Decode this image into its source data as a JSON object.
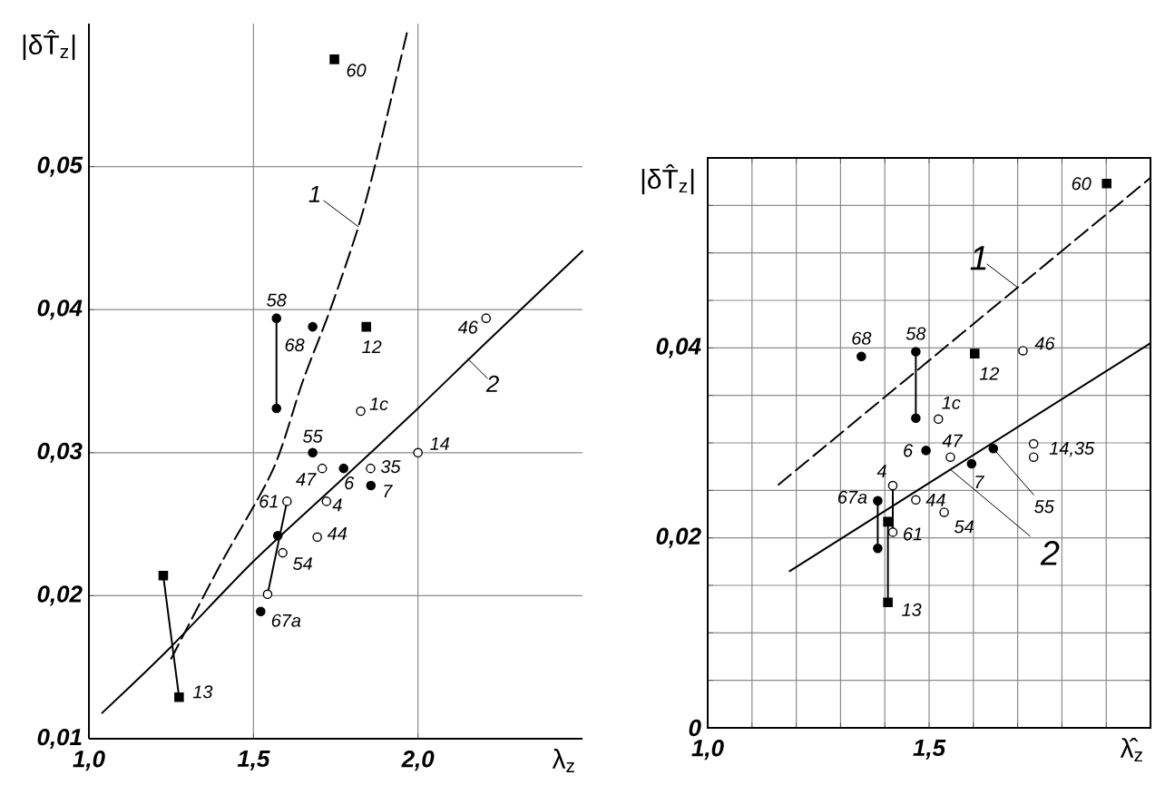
{
  "chart_data": [
    {
      "type": "scatter",
      "xlabel": "λ$_{z}$",
      "ylabel": "|δT̂$_{z}$|",
      "xlim": [
        1.0,
        2.5
      ],
      "ylim": [
        0.01,
        0.06
      ],
      "grid": true,
      "xticks": [
        {
          "value": 1.0,
          "label": "1,0"
        },
        {
          "value": 1.5,
          "label": "1,5"
        },
        {
          "value": 2.0,
          "label": "2,0"
        }
      ],
      "yticks": [
        {
          "value": 0.01,
          "label": "0,01"
        },
        {
          "value": 0.02,
          "label": "0,02"
        },
        {
          "value": 0.03,
          "label": "0,03"
        },
        {
          "value": 0.04,
          "label": "0,04"
        },
        {
          "value": 0.05,
          "label": "0,05"
        }
      ],
      "series": [
        {
          "marker": "square",
          "color": "#000000",
          "x": [
            1.746,
            1.843,
            1.274,
            1.226
          ],
          "values": [
            0.0575,
            0.0388,
            0.0129,
            0.0214
          ]
        },
        {
          "marker": "circle",
          "color": "#000000",
          "x": [
            1.57,
            1.57,
            1.68,
            1.68,
            1.774,
            1.857,
            1.574,
            1.522
          ],
          "values": [
            0.0394,
            0.0331,
            0.0388,
            0.03,
            0.0289,
            0.0277,
            0.0242,
            0.0189
          ]
        },
        {
          "marker": "circle",
          "color": "#ffffff",
          "x": [
            1.826,
            1.856,
            2.0,
            2.207,
            1.709,
            1.722,
            1.694,
            1.602,
            1.589,
            1.543
          ],
          "values": [
            0.0329,
            0.0289,
            0.03,
            0.0394,
            0.0289,
            0.0266,
            0.0241,
            0.0266,
            0.023,
            0.0201
          ]
        },
        {
          "type": "line",
          "marker": "none",
          "line_style": "dashed",
          "color": "#000000",
          "x": [
            1.25,
            1.4,
            1.559,
            1.65,
            1.735,
            1.819,
            1.874,
            1.97
          ],
          "values": [
            0.0156,
            0.0222,
            0.0288,
            0.035,
            0.0401,
            0.0458,
            0.0505,
            0.0597
          ]
        },
        {
          "type": "line",
          "marker": "none",
          "line_style": "solid",
          "color": "#000000",
          "x": [
            1.04,
            1.244,
            1.5,
            1.763,
            2.0,
            2.207,
            2.5
          ],
          "values": [
            0.0118,
            0.0163,
            0.0224,
            0.028,
            0.0331,
            0.0377,
            0.0441
          ]
        },
        {
          "type": "line",
          "marker": "none",
          "line_style": "solid",
          "color": "#000000",
          "x": [
            1.57,
            1.57
          ],
          "values": [
            0.0394,
            0.0331
          ]
        },
        {
          "type": "line",
          "marker": "none",
          "line_style": "solid",
          "color": "#000000",
          "x": [
            1.226,
            1.274
          ],
          "values": [
            0.0214,
            0.0129
          ]
        },
        {
          "type": "line",
          "marker": "none",
          "line_style": "solid",
          "color": "#000000",
          "x": [
            1.602,
            1.543
          ],
          "values": [
            0.0266,
            0.0201
          ]
        }
      ],
      "annotations": [
        {
          "text": "60",
          "x": 1.746,
          "y": 0.0575
        },
        {
          "text": "12",
          "x": 1.843,
          "y": 0.0388
        },
        {
          "text": "13",
          "x": 1.274,
          "y": 0.0129
        },
        {
          "text": "58",
          "x": 1.57,
          "y": 0.0394
        },
        {
          "text": "68",
          "x": 1.68,
          "y": 0.0388
        },
        {
          "text": "55",
          "x": 1.68,
          "y": 0.03
        },
        {
          "text": "6",
          "x": 1.774,
          "y": 0.0289
        },
        {
          "text": "7",
          "x": 1.857,
          "y": 0.0277
        },
        {
          "text": "1c",
          "x": 1.826,
          "y": 0.0329
        },
        {
          "text": "35",
          "x": 1.856,
          "y": 0.0289
        },
        {
          "text": "14",
          "x": 2.0,
          "y": 0.03
        },
        {
          "text": "46",
          "x": 2.207,
          "y": 0.0394
        },
        {
          "text": "47",
          "x": 1.709,
          "y": 0.0289
        },
        {
          "text": "4",
          "x": 1.722,
          "y": 0.0266
        },
        {
          "text": "44",
          "x": 1.694,
          "y": 0.0241
        },
        {
          "text": "61",
          "x": 1.602,
          "y": 0.0266
        },
        {
          "text": "54",
          "x": 1.589,
          "y": 0.023
        },
        {
          "text": "67a",
          "x": 1.522,
          "y": 0.0189
        },
        {
          "text": "1",
          "x": 1.819,
          "y": 0.0458
        },
        {
          "text": "2",
          "x": 2.15,
          "y": 0.0366
        }
      ]
    },
    {
      "type": "scatter",
      "xlabel": "λ̂$_{z}$",
      "ylabel": "|δT̂$_{z}$|",
      "xlim": [
        1.0,
        2.0
      ],
      "ylim": [
        0,
        0.06
      ],
      "grid": true,
      "xticks": [
        {
          "value": 1.0,
          "label": "1,0"
        },
        {
          "value": 1.1,
          "label": null
        },
        {
          "value": 1.2,
          "label": null
        },
        {
          "value": 1.3,
          "label": null
        },
        {
          "value": 1.4,
          "label": null
        },
        {
          "value": 1.5,
          "label": "1,5"
        },
        {
          "value": 1.6,
          "label": null
        },
        {
          "value": 1.7,
          "label": null
        },
        {
          "value": 1.8,
          "label": null
        },
        {
          "value": 1.9,
          "label": null
        },
        {
          "value": 2.0,
          "label": null
        }
      ],
      "yticks": [
        0,
        {
          "value": 0.005,
          "label": null
        },
        {
          "value": 0.01,
          "label": null
        },
        {
          "value": 0.015,
          "label": null
        },
        {
          "value": 0.02,
          "label": "0,02"
        },
        {
          "value": 0.025,
          "label": null
        },
        {
          "value": 0.03,
          "label": null
        },
        {
          "value": 0.035,
          "label": null
        },
        {
          "value": 0.04,
          "label": "0,04"
        },
        {
          "value": 0.045,
          "label": null
        },
        {
          "value": 0.05,
          "label": null
        },
        {
          "value": 0.055,
          "label": null
        },
        {
          "value": 0.06,
          "label": null
        }
      ],
      "series": [
        {
          "marker": "square",
          "color": "#000000",
          "x": [
            1.901,
            1.603,
            1.407,
            1.407
          ],
          "values": [
            0.0573,
            0.0394,
            0.0132,
            0.0217
          ]
        },
        {
          "marker": "circle",
          "color": "#000000",
          "x": [
            1.347,
            1.47,
            1.47,
            1.493,
            1.596,
            1.645,
            1.384,
            1.384
          ],
          "values": [
            0.0391,
            0.0396,
            0.0326,
            0.0292,
            0.0278,
            0.0294,
            0.0239,
            0.0189
          ]
        },
        {
          "marker": "circle",
          "color": "#ffffff",
          "x": [
            1.521,
            1.548,
            1.712,
            1.736,
            1.736,
            1.418,
            1.47,
            1.534,
            1.418
          ],
          "values": [
            0.0325,
            0.0285,
            0.0397,
            0.0299,
            0.0285,
            0.0255,
            0.024,
            0.0227,
            0.0206
          ]
        },
        {
          "type": "line",
          "marker": "none",
          "line_style": "dashed",
          "color": "#000000",
          "x": [
            1.16,
            2.0
          ],
          "values": [
            0.0256,
            0.0579
          ]
        },
        {
          "type": "line",
          "marker": "none",
          "line_style": "solid",
          "color": "#000000",
          "x": [
            1.185,
            2.0
          ],
          "values": [
            0.0165,
            0.0405
          ]
        },
        {
          "type": "line",
          "marker": "none",
          "line_style": "solid",
          "color": "#000000",
          "x": [
            1.47,
            1.47
          ],
          "values": [
            0.0396,
            0.0326
          ]
        },
        {
          "type": "line",
          "marker": "none",
          "line_style": "solid",
          "color": "#000000",
          "x": [
            1.384,
            1.384
          ],
          "values": [
            0.0239,
            0.0189
          ]
        },
        {
          "type": "line",
          "marker": "none",
          "line_style": "solid",
          "color": "#000000",
          "x": [
            1.407,
            1.407
          ],
          "values": [
            0.0217,
            0.0132
          ]
        },
        {
          "type": "line",
          "marker": "none",
          "line_style": "solid",
          "color": "#000000",
          "x": [
            1.418,
            1.418
          ],
          "values": [
            0.0255,
            0.0206
          ]
        }
      ],
      "annotations": [
        {
          "text": "60",
          "x": 1.901,
          "y": 0.0573
        },
        {
          "text": "12",
          "x": 1.603,
          "y": 0.0394
        },
        {
          "text": "13",
          "x": 1.407,
          "y": 0.0132
        },
        {
          "text": "68",
          "x": 1.347,
          "y": 0.0391
        },
        {
          "text": "58",
          "x": 1.47,
          "y": 0.0396
        },
        {
          "text": "6",
          "x": 1.493,
          "y": 0.0292
        },
        {
          "text": "7",
          "x": 1.596,
          "y": 0.0278
        },
        {
          "text": "55",
          "x": 1.645,
          "y": 0.0294
        },
        {
          "text": "67a",
          "x": 1.384,
          "y": 0.0239
        },
        {
          "text": "1c",
          "x": 1.521,
          "y": 0.0325
        },
        {
          "text": "47",
          "x": 1.548,
          "y": 0.0285
        },
        {
          "text": "46",
          "x": 1.712,
          "y": 0.0397
        },
        {
          "text": "14,35",
          "x": 1.736,
          "y": 0.0299
        },
        {
          "text": "4",
          "x": 1.418,
          "y": 0.0255
        },
        {
          "text": "44",
          "x": 1.47,
          "y": 0.024
        },
        {
          "text": "54",
          "x": 1.534,
          "y": 0.0227
        },
        {
          "text": "61",
          "x": 1.418,
          "y": 0.0206
        },
        {
          "text": "1",
          "x": 1.699,
          "y": 0.0464
        },
        {
          "text": "2",
          "x": 1.548,
          "y": 0.0272
        }
      ]
    }
  ]
}
